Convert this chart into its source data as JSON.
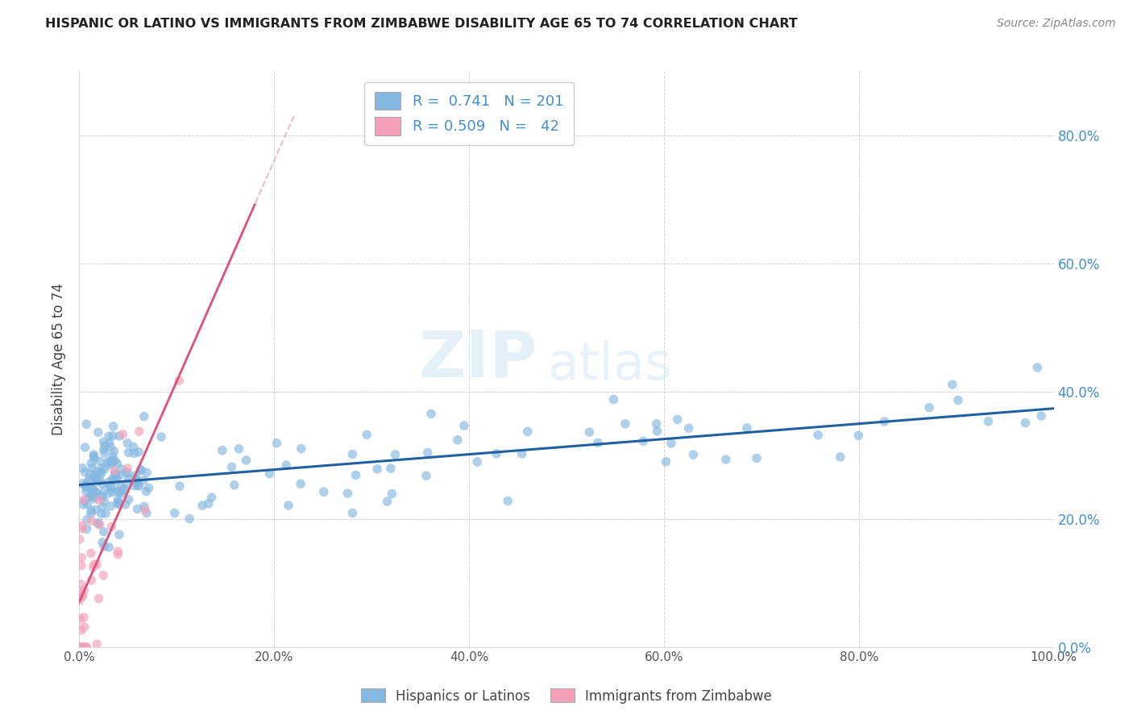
{
  "title": "HISPANIC OR LATINO VS IMMIGRANTS FROM ZIMBABWE DISABILITY AGE 65 TO 74 CORRELATION CHART",
  "source": "Source: ZipAtlas.com",
  "ylabel": "Disability Age 65 to 74",
  "legend_labels": [
    "Hispanics or Latinos",
    "Immigrants from Zimbabwe"
  ],
  "blue_color": "#85b8e0",
  "pink_color": "#f4a0b8",
  "blue_line_color": "#2060a0",
  "pink_line_color": "#e0507a",
  "pink_line_dash_color": "#e0a0b8",
  "R_blue": 0.741,
  "N_blue": 201,
  "R_pink": 0.509,
  "N_pink": 42,
  "watermark_zip": "ZIP",
  "watermark_atlas": "atlas",
  "background_color": "#ffffff",
  "grid_color": "#cccccc",
  "right_axis_color": "#4090d0",
  "x_min": 0.0,
  "x_max": 1.0,
  "y_min": 0.0,
  "y_max": 0.9
}
